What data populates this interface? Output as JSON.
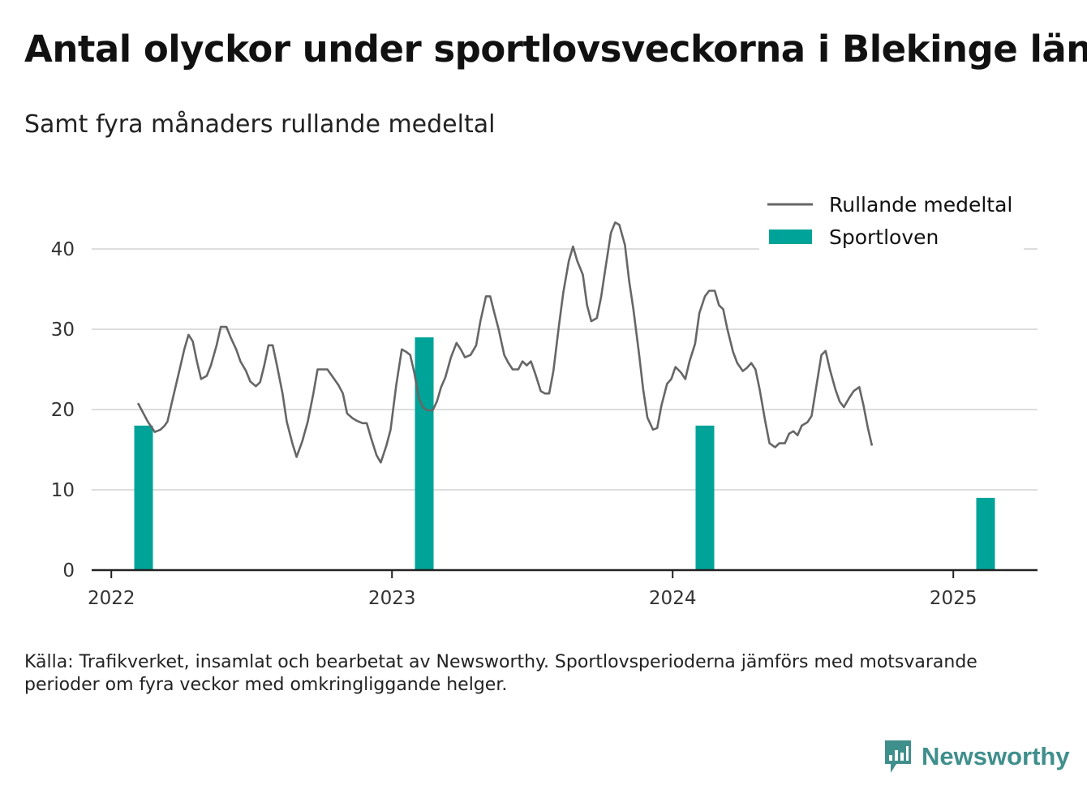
{
  "title": "Antal olyckor under sportlovsveckorna i Blekinge län",
  "subtitle": "Samt fyra månaders rullande medeltal",
  "source": "Källa: Trafikverket, insamlat och bearbetat av Newsworthy. Sportlovsperioderna jämförs med motsvarande perioder om fyra veckor med omkringliggande helger.",
  "brand": {
    "name": "Newsworthy",
    "icon": "newsworthy-logo-icon",
    "color": "#3f8f8c"
  },
  "chart_data": {
    "type": "bar+line",
    "ylim": [
      0,
      45
    ],
    "y_ticks": [
      0,
      10,
      20,
      30,
      40
    ],
    "x_range": [
      2021.93,
      2025.3
    ],
    "x_ticks": [
      {
        "value": 2022,
        "label": "2022"
      },
      {
        "value": 2023,
        "label": "2023"
      },
      {
        "value": 2024,
        "label": "2024"
      },
      {
        "value": 2025,
        "label": "2025"
      }
    ],
    "grid": true,
    "legend_position": "top-right",
    "colors": {
      "line": "#666666",
      "bars": "#00a398",
      "grid": "#dddddd",
      "axis": "#222222"
    },
    "legend": [
      {
        "label": "Rullande medeltal",
        "kind": "line"
      },
      {
        "label": "Sportloven",
        "kind": "bar"
      }
    ],
    "bars": {
      "name": "Sportloven",
      "x": [
        2022.115,
        2023.115,
        2024.115,
        2025.115
      ],
      "values": [
        18,
        29,
        18,
        9
      ]
    },
    "line": {
      "name": "Rullande medeltal",
      "points": [
        [
          2022.095,
          20.8
        ],
        [
          2022.13,
          18.5
        ],
        [
          2022.155,
          17.2
        ],
        [
          2022.175,
          17.5
        ],
        [
          2022.19,
          18.0
        ],
        [
          2022.2,
          18.5
        ],
        [
          2022.22,
          21.5
        ],
        [
          2022.24,
          24.5
        ],
        [
          2022.26,
          27.5
        ],
        [
          2022.275,
          29.3
        ],
        [
          2022.29,
          28.5
        ],
        [
          2022.305,
          26.0
        ],
        [
          2022.32,
          23.8
        ],
        [
          2022.34,
          24.2
        ],
        [
          2022.355,
          25.5
        ],
        [
          2022.375,
          28.0
        ],
        [
          2022.39,
          30.3
        ],
        [
          2022.41,
          30.3
        ],
        [
          2022.425,
          29.0
        ],
        [
          2022.445,
          27.5
        ],
        [
          2022.46,
          26.0
        ],
        [
          2022.48,
          24.8
        ],
        [
          2022.495,
          23.5
        ],
        [
          2022.515,
          22.9
        ],
        [
          2022.53,
          23.4
        ],
        [
          2022.545,
          25.5
        ],
        [
          2022.56,
          28.0
        ],
        [
          2022.575,
          28.0
        ],
        [
          2022.59,
          25.5
        ],
        [
          2022.61,
          22.0
        ],
        [
          2022.625,
          18.5
        ],
        [
          2022.645,
          15.8
        ],
        [
          2022.66,
          14.1
        ],
        [
          2022.68,
          16.0
        ],
        [
          2022.7,
          18.5
        ],
        [
          2022.72,
          22.0
        ],
        [
          2022.735,
          25.0
        ],
        [
          2022.755,
          25.0
        ],
        [
          2022.77,
          25.0
        ],
        [
          2022.79,
          24.0
        ],
        [
          2022.81,
          23.0
        ],
        [
          2022.825,
          22.0
        ],
        [
          2022.84,
          19.5
        ],
        [
          2022.86,
          18.9
        ],
        [
          2022.875,
          18.6
        ],
        [
          2022.895,
          18.3
        ],
        [
          2022.91,
          18.3
        ],
        [
          2022.925,
          16.5
        ],
        [
          2022.945,
          14.3
        ],
        [
          2022.96,
          13.4
        ],
        [
          2022.98,
          15.5
        ],
        [
          2022.995,
          17.5
        ],
        [
          2023.015,
          23.0
        ],
        [
          2023.035,
          27.5
        ],
        [
          2023.05,
          27.2
        ],
        [
          2023.065,
          26.8
        ],
        [
          2023.08,
          24.5
        ],
        [
          2023.095,
          21.5
        ],
        [
          2023.11,
          20.3
        ],
        [
          2023.125,
          19.9
        ],
        [
          2023.145,
          19.9
        ],
        [
          2023.16,
          21.0
        ],
        [
          2023.175,
          22.8
        ],
        [
          2023.19,
          24.0
        ],
        [
          2023.21,
          26.5
        ],
        [
          2023.23,
          28.3
        ],
        [
          2023.245,
          27.5
        ],
        [
          2023.26,
          26.5
        ],
        [
          2023.28,
          26.8
        ],
        [
          2023.3,
          28.0
        ],
        [
          2023.315,
          31.0
        ],
        [
          2023.335,
          34.1
        ],
        [
          2023.35,
          34.1
        ],
        [
          2023.365,
          32.0
        ],
        [
          2023.38,
          30.0
        ],
        [
          2023.4,
          26.8
        ],
        [
          2023.415,
          25.8
        ],
        [
          2023.43,
          25.0
        ],
        [
          2023.45,
          25.0
        ],
        [
          2023.465,
          26.0
        ],
        [
          2023.48,
          25.5
        ],
        [
          2023.495,
          26.0
        ],
        [
          2023.51,
          24.5
        ],
        [
          2023.53,
          22.3
        ],
        [
          2023.545,
          22.0
        ],
        [
          2023.56,
          22.0
        ],
        [
          2023.575,
          24.8
        ],
        [
          2023.595,
          30.5
        ],
        [
          2023.61,
          34.5
        ],
        [
          2023.63,
          38.5
        ],
        [
          2023.645,
          40.3
        ],
        [
          2023.66,
          38.5
        ],
        [
          2023.68,
          36.8
        ],
        [
          2023.695,
          33.0
        ],
        [
          2023.71,
          31.0
        ],
        [
          2023.73,
          31.4
        ],
        [
          2023.745,
          34.0
        ],
        [
          2023.76,
          37.5
        ],
        [
          2023.78,
          42.0
        ],
        [
          2023.795,
          43.3
        ],
        [
          2023.81,
          43.0
        ],
        [
          2023.83,
          40.5
        ],
        [
          2023.845,
          36.0
        ],
        [
          2023.86,
          32.5
        ],
        [
          2023.88,
          27.0
        ],
        [
          2023.895,
          22.5
        ],
        [
          2023.91,
          19.0
        ],
        [
          2023.93,
          17.5
        ],
        [
          2023.945,
          17.7
        ],
        [
          2023.96,
          20.5
        ],
        [
          2023.98,
          23.2
        ],
        [
          2023.995,
          23.8
        ],
        [
          2024.01,
          25.3
        ],
        [
          2024.03,
          24.6
        ],
        [
          2024.045,
          23.8
        ],
        [
          2024.06,
          26.0
        ],
        [
          2024.08,
          28.2
        ],
        [
          2024.095,
          32.0
        ],
        [
          2024.115,
          34.1
        ],
        [
          2024.13,
          34.8
        ],
        [
          2024.15,
          34.8
        ],
        [
          2024.165,
          33.0
        ],
        [
          2024.18,
          32.5
        ],
        [
          2024.195,
          30.0
        ],
        [
          2024.215,
          27.2
        ],
        [
          2024.23,
          25.8
        ],
        [
          2024.25,
          24.8
        ],
        [
          2024.265,
          25.2
        ],
        [
          2024.28,
          25.8
        ],
        [
          2024.295,
          25.0
        ],
        [
          2024.31,
          22.5
        ],
        [
          2024.33,
          18.5
        ],
        [
          2024.345,
          15.8
        ],
        [
          2024.365,
          15.3
        ],
        [
          2024.38,
          15.8
        ],
        [
          2024.4,
          15.8
        ],
        [
          2024.415,
          17.0
        ],
        [
          2024.43,
          17.3
        ],
        [
          2024.445,
          16.8
        ],
        [
          2024.46,
          18.0
        ],
        [
          2024.48,
          18.4
        ],
        [
          2024.495,
          19.2
        ],
        [
          2024.51,
          22.5
        ],
        [
          2024.53,
          26.8
        ],
        [
          2024.545,
          27.3
        ],
        [
          2024.56,
          25.0
        ],
        [
          2024.58,
          22.5
        ],
        [
          2024.595,
          21.0
        ],
        [
          2024.61,
          20.3
        ],
        [
          2024.63,
          21.5
        ],
        [
          2024.645,
          22.3
        ],
        [
          2024.665,
          22.8
        ],
        [
          2024.68,
          20.5
        ],
        [
          2024.695,
          17.8
        ],
        [
          2024.71,
          15.5
        ]
      ]
    }
  }
}
